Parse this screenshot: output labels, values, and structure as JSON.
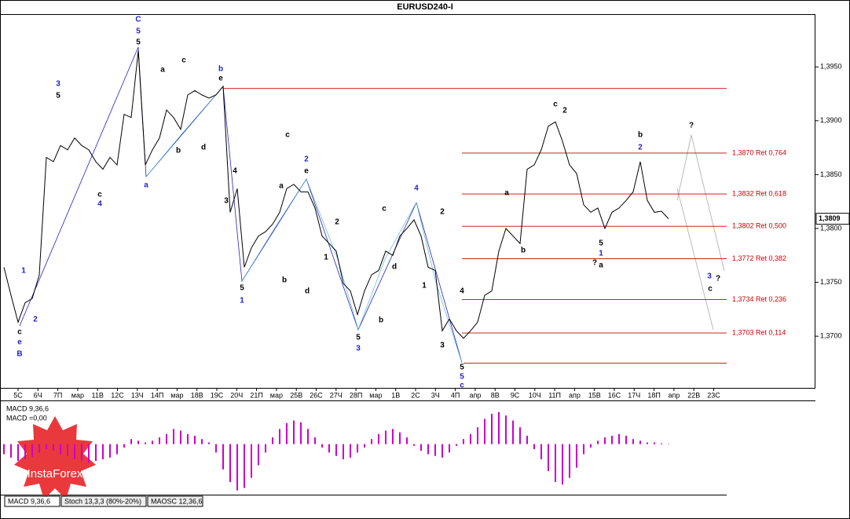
{
  "chart_data": {
    "type": "line",
    "title": "EURUSD240-I",
    "color": "#000000",
    "values": [
      1.3764,
      1.3738,
      1.3713,
      1.3731,
      1.3735,
      1.3757,
      1.3866,
      1.3862,
      1.3877,
      1.3873,
      1.3884,
      1.3877,
      1.3873,
      1.3862,
      1.3855,
      1.3866,
      1.3859,
      1.3906,
      1.3903,
      1.3965,
      1.3859,
      1.3873,
      1.3884,
      1.391,
      1.3903,
      1.3892,
      1.3924,
      1.3928,
      1.3924,
      1.3921,
      1.3924,
      1.3932,
      1.3815,
      1.3837,
      1.3764,
      1.3782,
      1.3793,
      1.3797,
      1.3804,
      1.3815,
      1.3837,
      1.3841,
      1.3834,
      1.3834,
      1.3819,
      1.3793,
      1.3786,
      1.3779,
      1.3749,
      1.3742,
      1.372,
      1.3742,
      1.3757,
      1.3761,
      1.3779,
      1.3775,
      1.3793,
      1.38,
      1.3808,
      1.3793,
      1.3764,
      1.3761,
      1.3705,
      1.3716,
      1.3705,
      1.3698,
      1.3705,
      1.3713,
      1.3738,
      1.3742,
      1.3779,
      1.38,
      1.3793,
      1.3786,
      1.3855,
      1.3859,
      1.3873,
      1.3895,
      1.3899,
      1.3881,
      1.3859,
      1.3851,
      1.3822,
      1.3815,
      1.3819,
      1.38,
      1.3815,
      1.3819,
      1.3826,
      1.3834,
      1.3862,
      1.3826,
      1.3815,
      1.3816,
      1.3809
    ],
    "ylim": [
      1.3652,
      1.3999
    ],
    "yticks": [
      {
        "value": 1.37,
        "label": "1,3700"
      },
      {
        "value": 1.375,
        "label": "1,3750"
      },
      {
        "value": 1.38,
        "label": "1,3800"
      },
      {
        "value": 1.385,
        "label": "1,3850"
      },
      {
        "value": 1.39,
        "label": "1,3900"
      },
      {
        "value": 1.395,
        "label": "1,3950"
      }
    ],
    "last_price": {
      "value": 1.3809,
      "label": "1,3809"
    },
    "level_color": "#cc0000",
    "levels": [
      {
        "value": 1.393
      },
      {
        "value": 1.387,
        "label": "1,3870 Ret 0,764"
      },
      {
        "value": 1.3832,
        "label": "1,3832 Ret 0,618"
      },
      {
        "value": 1.3802,
        "label": "1,3802 Ret 0,500"
      },
      {
        "value": 1.3772,
        "label": "1,3772 Ret 0,382"
      },
      {
        "value": 1.3734,
        "label": "1,3734 Ret 0,236"
      },
      {
        "value": 1.3703,
        "label": "1,3703 Ret 0,114"
      },
      {
        "value": 1.3675
      }
    ],
    "x_labels": [
      "5С",
      "6Ч",
      "7П",
      "мар",
      "11В",
      "12С",
      "13Ч",
      "14П",
      "мар",
      "18В",
      "19С",
      "20Ч",
      "21П",
      "мар",
      "25В",
      "26С",
      "27Ч",
      "28П",
      "мар",
      "1В",
      "2С",
      "3Ч",
      "4П",
      "апр",
      "8В",
      "9С",
      "10Ч",
      "11П",
      "апр",
      "15В",
      "16С",
      "17Ч",
      "18П",
      "апр",
      "22В",
      "23С"
    ],
    "annotations": [
      {
        "text": "C",
        "color": "#2222cc"
      },
      {
        "text": "5",
        "color": "#2222cc"
      },
      {
        "text": "5",
        "color": "#000000"
      },
      {
        "text": "B",
        "color": "#2222cc"
      },
      {
        "text": "e",
        "color": "#2222cc"
      },
      {
        "text": "c",
        "color": "#000000"
      },
      {
        "text": "a",
        "color": "#2222cc"
      },
      {
        "text": "b",
        "color": "#2222cc"
      },
      {
        "text": "e",
        "color": "#000000"
      },
      {
        "text": "3",
        "color": "#2222cc"
      },
      {
        "text": "5",
        "color": "#000000"
      },
      {
        "text": "4",
        "color": "#2222cc"
      },
      {
        "text": "c",
        "color": "#000000"
      },
      {
        "text": "1",
        "color": "#2222cc"
      },
      {
        "text": "2",
        "color": "#2222cc"
      },
      {
        "text": "2",
        "color": "#2222cc"
      },
      {
        "text": "e",
        "color": "#000000"
      },
      {
        "text": "c",
        "color": "#000000"
      },
      {
        "text": "1",
        "color": "#2222cc"
      },
      {
        "text": "5",
        "color": "#000000"
      },
      {
        "text": "3",
        "color": "#2222cc"
      },
      {
        "text": "5",
        "color": "#000000"
      },
      {
        "text": "4",
        "color": "#2222cc"
      },
      {
        "text": "c",
        "color": "#000000"
      },
      {
        "text": "5",
        "color": "#2222cc"
      },
      {
        "text": "c",
        "color": "#2222cc"
      },
      {
        "text": "5",
        "color": "#000000"
      },
      {
        "text": "c",
        "color": "#000000"
      },
      {
        "text": "2",
        "color": "#000000"
      },
      {
        "text": "b",
        "color": "#000000"
      },
      {
        "text": "2",
        "color": "#2222cc"
      },
      {
        "text": "1",
        "color": "#2222cc"
      },
      {
        "text": "5",
        "color": "#000000"
      },
      {
        "text": "?",
        "color": "#000000"
      },
      {
        "text": "a",
        "color": "#000000"
      },
      {
        "text": "?",
        "color": "#000000"
      },
      {
        "text": "3",
        "color": "#2222cc"
      },
      {
        "text": "?",
        "color": "#000000"
      },
      {
        "text": "c",
        "color": "#000000"
      },
      {
        "text": "b",
        "color": "#000000"
      },
      {
        "text": "a",
        "color": "#000000"
      },
      {
        "text": "a",
        "color": "#000000"
      },
      {
        "text": "c",
        "color": "#000000"
      },
      {
        "text": "b",
        "color": "#000000"
      },
      {
        "text": "d",
        "color": "#000000"
      },
      {
        "text": "4",
        "color": "#000000"
      },
      {
        "text": "3",
        "color": "#000000"
      },
      {
        "text": "d",
        "color": "#000000"
      },
      {
        "text": "b",
        "color": "#000000"
      },
      {
        "text": "a",
        "color": "#000000"
      },
      {
        "text": "2",
        "color": "#000000"
      },
      {
        "text": "1",
        "color": "#000000"
      },
      {
        "text": "2",
        "color": "#000000"
      },
      {
        "text": "4",
        "color": "#000000"
      },
      {
        "text": "3",
        "color": "#000000"
      },
      {
        "text": "1",
        "color": "#000000"
      },
      {
        "text": "d",
        "color": "#000000"
      },
      {
        "text": "b",
        "color": "#000000"
      }
    ],
    "macd": {
      "type": "bar",
      "title": "MACD 9,36,6",
      "value_text": "MACD =0,00",
      "color": "#cc00cc",
      "ylim": [
        -0.006,
        0.005
      ],
      "values": [
        -0.0012,
        -0.0016,
        -0.002,
        -0.0018,
        -0.0015,
        -0.001,
        -0.0006,
        -0.0008,
        -0.0012,
        -0.0014,
        -0.0018,
        -0.002,
        -0.0022,
        -0.002,
        -0.0018,
        -0.0016,
        -0.0012,
        -0.0004,
        0.0006,
        0.0004,
        0.0002,
        0.0004,
        0.0008,
        0.0012,
        0.0018,
        0.0016,
        0.0012,
        0.001,
        0.0006,
        0.0002,
        -0.001,
        -0.003,
        -0.0045,
        -0.0055,
        -0.0052,
        -0.004,
        -0.0025,
        -0.001,
        0.0008,
        0.0018,
        0.0025,
        0.0028,
        0.0026,
        0.0018,
        0.0008,
        -0.0004,
        -0.001,
        -0.0014,
        -0.0018,
        -0.0016,
        -0.001,
        -0.0004,
        0.0006,
        0.0012,
        0.0016,
        0.0018,
        0.0014,
        0.0008,
        -0.0002,
        -0.0008,
        -0.0012,
        -0.0014,
        -0.0016,
        -0.001,
        -0.0002,
        0.0006,
        0.0012,
        0.002,
        0.003,
        0.0036,
        0.0038,
        0.0034,
        0.0028,
        0.002,
        0.001,
        -0.0006,
        -0.0018,
        -0.0032,
        -0.0045,
        -0.0048,
        -0.004,
        -0.0028,
        -0.0012,
        -0.0004,
        0.0004,
        0.0008,
        0.001,
        0.0012,
        0.001,
        0.0006,
        0.0004,
        0.0002,
        0.0002,
        0.0001,
        0
      ]
    }
  },
  "tabs": [
    "MACD 9,36,6",
    "Stoch 13,3,3 (80%-20%)",
    "MAOSC 12,36,6"
  ],
  "watermark": "InstaForex"
}
